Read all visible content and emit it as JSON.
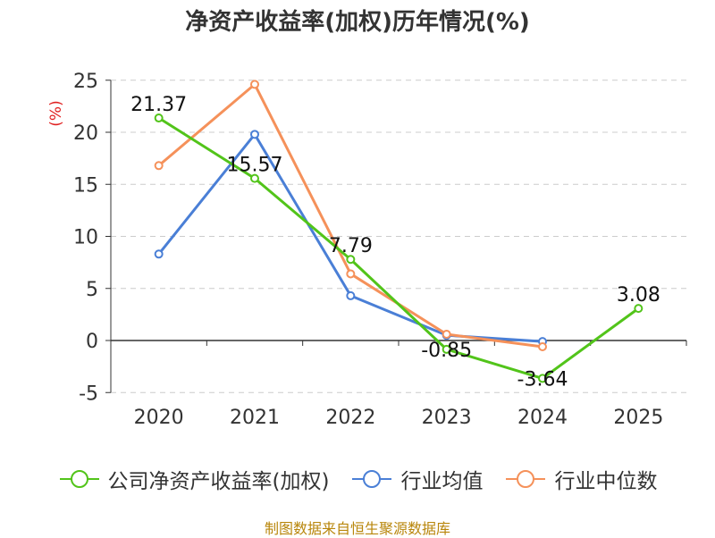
{
  "chart_data": {
    "type": "line",
    "title": "净资产收益率(加权)历年情况(%)",
    "ylabel": "(%)",
    "xlabel": "",
    "categories": [
      "2020",
      "2021",
      "2022",
      "2023",
      "2024",
      "2025"
    ],
    "ylim": [
      -5,
      25
    ],
    "yticks": [
      -5,
      0,
      5,
      10,
      15,
      20,
      25
    ],
    "grid": true,
    "legend_position": "bottom",
    "series": [
      {
        "name": "公司净资产收益率(加权)",
        "color": "#52c41a",
        "values": [
          21.37,
          15.57,
          7.79,
          -0.85,
          -3.64,
          3.08
        ],
        "labels": [
          "21.37",
          "15.57",
          "7.79",
          "-0.85",
          "-3.64",
          "3.08"
        ]
      },
      {
        "name": "行业均值",
        "color": "#4a7fd6",
        "values": [
          8.3,
          19.8,
          4.3,
          0.5,
          -0.1,
          null
        ]
      },
      {
        "name": "行业中位数",
        "color": "#f5915a",
        "values": [
          16.8,
          24.6,
          6.4,
          0.6,
          -0.6,
          null
        ]
      }
    ]
  },
  "footer": "制图数据来自恒生聚源数据库"
}
